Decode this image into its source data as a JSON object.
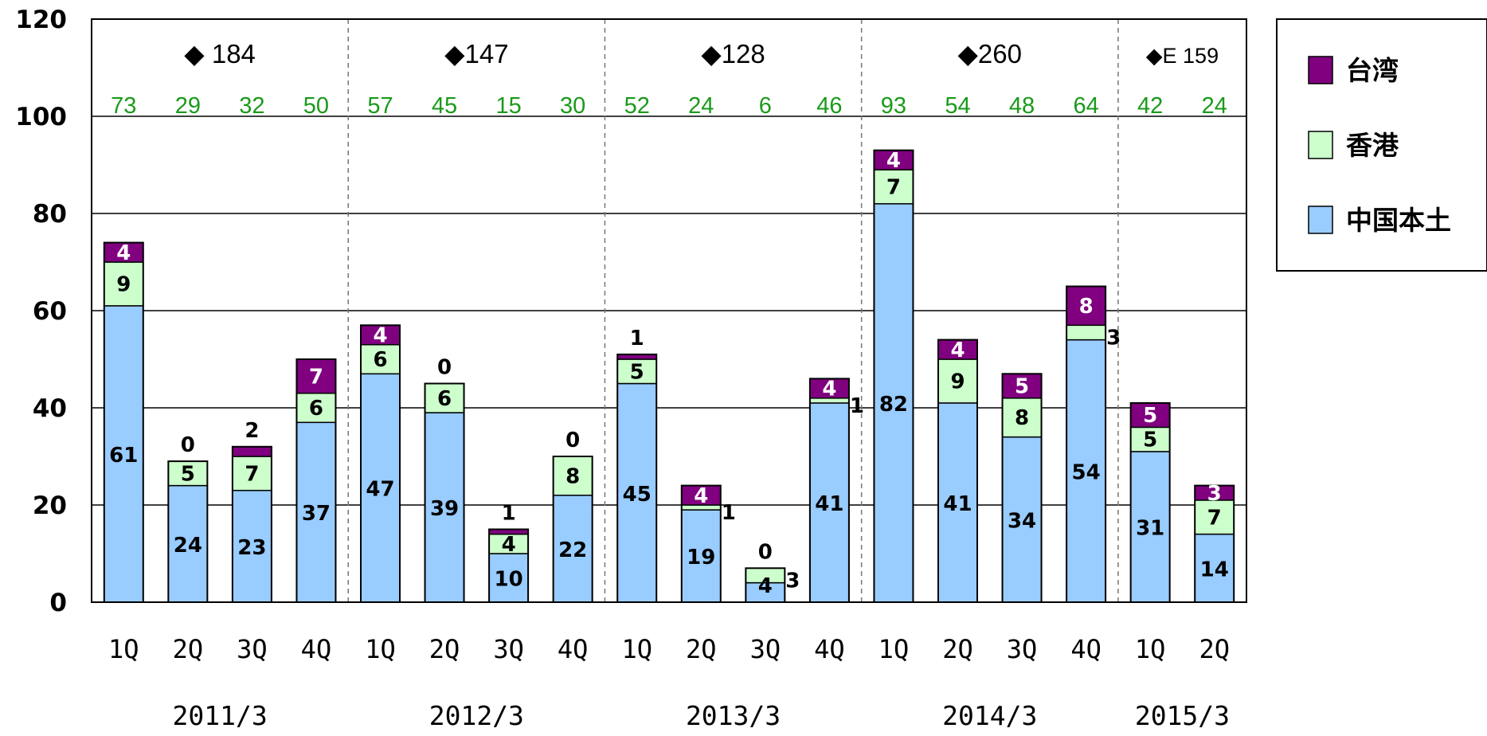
{
  "chart_data": {
    "type": "bar",
    "stacked": true,
    "categories": [
      "1Q",
      "2Q",
      "3Q",
      "4Q",
      "1Q",
      "2Q",
      "3Q",
      "4Q",
      "1Q",
      "2Q",
      "3Q",
      "4Q",
      "1Q",
      "2Q",
      "3Q",
      "4Q",
      "1Q",
      "2Q"
    ],
    "fiscal_years": [
      {
        "label": "2011/3",
        "count": 4
      },
      {
        "label": "2012/3",
        "count": 4
      },
      {
        "label": "2013/3",
        "count": 4
      },
      {
        "label": "2014/3",
        "count": 4
      },
      {
        "label": "2015/3",
        "count": 2
      }
    ],
    "series": [
      {
        "name": "中国本土",
        "color": "#99ccff",
        "values": [
          61,
          24,
          23,
          37,
          47,
          39,
          10,
          22,
          45,
          19,
          4,
          41,
          82,
          41,
          34,
          54,
          31,
          14
        ]
      },
      {
        "name": "香港",
        "color": "#ccffcc",
        "values": [
          9,
          5,
          7,
          6,
          6,
          6,
          4,
          8,
          5,
          1,
          3,
          1,
          7,
          9,
          8,
          3,
          5,
          7
        ]
      },
      {
        "name": "台湾",
        "color": "#800080",
        "values": [
          4,
          0,
          2,
          7,
          4,
          0,
          1,
          0,
          1,
          4,
          0,
          4,
          4,
          4,
          5,
          8,
          5,
          3
        ]
      }
    ],
    "quarter_totals": [
      "73",
      "29",
      "32",
      "50",
      "57",
      "45",
      "15",
      "30",
      "52",
      "24",
      "6",
      "46",
      "93",
      "54",
      "48",
      "64",
      "42",
      "24"
    ],
    "annual_totals": [
      "◆ 184",
      "◆147",
      "◆128",
      "◆260",
      "◆E 159"
    ],
    "ylim": [
      0,
      120
    ],
    "yticks": [
      "0",
      "20",
      "40",
      "60",
      "80",
      "100",
      "120"
    ],
    "grid": true,
    "legend_position": "right",
    "legend": [
      "台湾",
      "香港",
      "中国本土"
    ]
  }
}
